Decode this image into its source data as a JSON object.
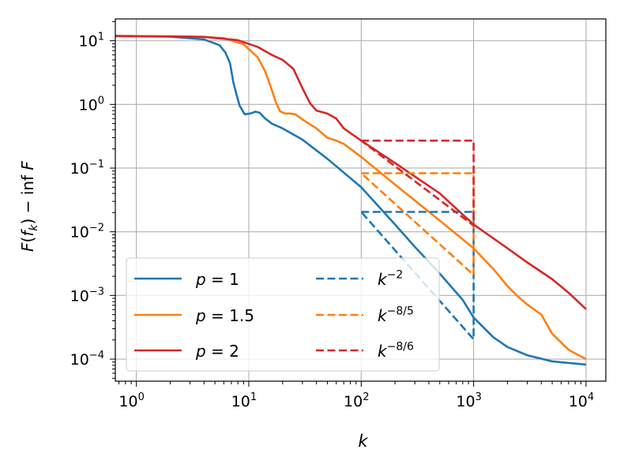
{
  "chart_data": {
    "type": "line",
    "xscale": "log",
    "yscale": "log",
    "xlim": [
      0.65,
      15000
    ],
    "ylim": [
      4.5e-05,
      22
    ],
    "grid": true,
    "xlabel": "k",
    "ylabel": "F(f_k) − inf F",
    "xticks": [
      {
        "base": "10",
        "exp": "0",
        "value": 1
      },
      {
        "base": "10",
        "exp": "1",
        "value": 10
      },
      {
        "base": "10",
        "exp": "2",
        "value": 100
      },
      {
        "base": "10",
        "exp": "3",
        "value": 1000
      },
      {
        "base": "10",
        "exp": "4",
        "value": 10000
      }
    ],
    "yticks": [
      {
        "base": "10",
        "exp": "1",
        "value": 10
      },
      {
        "base": "10",
        "exp": "0",
        "value": 1
      },
      {
        "base": "10",
        "exp": "−1",
        "value": 0.1
      },
      {
        "base": "10",
        "exp": "−2",
        "value": 0.01
      },
      {
        "base": "10",
        "exp": "−3",
        "value": 0.001
      },
      {
        "base": "10",
        "exp": "−4",
        "value": 0.0001
      }
    ],
    "series": [
      {
        "name": "p = 1",
        "style": "solid",
        "color": "#1f77b4",
        "points": [
          [
            0.65,
            11.8
          ],
          [
            2,
            11.6
          ],
          [
            4,
            10.5
          ],
          [
            5.5,
            8.5
          ],
          [
            6.2,
            6.5
          ],
          [
            6.8,
            4.5
          ],
          [
            7.3,
            2.2
          ],
          [
            7.8,
            1.4
          ],
          [
            8.3,
            0.95
          ],
          [
            9.2,
            0.7
          ],
          [
            10.3,
            0.72
          ],
          [
            11.5,
            0.77
          ],
          [
            12.5,
            0.74
          ],
          [
            14,
            0.6
          ],
          [
            16,
            0.5
          ],
          [
            20,
            0.42
          ],
          [
            30,
            0.28
          ],
          [
            50,
            0.14
          ],
          [
            100,
            0.05
          ],
          [
            200,
            0.013
          ],
          [
            300,
            0.0058
          ],
          [
            500,
            0.0022
          ],
          [
            800,
            0.00085
          ],
          [
            1000,
            0.00045
          ],
          [
            1500,
            0.00022
          ],
          [
            2000,
            0.000155
          ],
          [
            3000,
            0.000115
          ],
          [
            5000,
            9.2e-05
          ],
          [
            10000,
            8.2e-05
          ]
        ]
      },
      {
        "name": "p = 1.5",
        "style": "solid",
        "color": "#ff7f0e",
        "points": [
          [
            0.65,
            11.9
          ],
          [
            3,
            11.7
          ],
          [
            6,
            11
          ],
          [
            9,
            8.8
          ],
          [
            12,
            5.5
          ],
          [
            14,
            3.3
          ],
          [
            16,
            1.7
          ],
          [
            17.5,
            1.05
          ],
          [
            19,
            0.78
          ],
          [
            21,
            0.72
          ],
          [
            23,
            0.72
          ],
          [
            26,
            0.7
          ],
          [
            30,
            0.58
          ],
          [
            40,
            0.42
          ],
          [
            50,
            0.3
          ],
          [
            60,
            0.27
          ],
          [
            70,
            0.24
          ],
          [
            100,
            0.15
          ],
          [
            200,
            0.055
          ],
          [
            500,
            0.015
          ],
          [
            1000,
            0.0055
          ],
          [
            1500,
            0.0026
          ],
          [
            2000,
            0.0014
          ],
          [
            2500,
            0.00095
          ],
          [
            3000,
            0.00072
          ],
          [
            4000,
            0.0005
          ],
          [
            5000,
            0.00025
          ],
          [
            7000,
            0.00014
          ],
          [
            10000,
            0.0001
          ]
        ]
      },
      {
        "name": "p = 2",
        "style": "solid",
        "color": "#d62728",
        "points": [
          [
            0.65,
            11.9
          ],
          [
            4,
            11.5
          ],
          [
            8,
            10.2
          ],
          [
            12,
            8
          ],
          [
            16,
            6
          ],
          [
            20,
            5
          ],
          [
            25,
            3.6
          ],
          [
            30,
            1.8
          ],
          [
            35,
            1.05
          ],
          [
            40,
            0.8
          ],
          [
            50,
            0.72
          ],
          [
            60,
            0.6
          ],
          [
            70,
            0.42
          ],
          [
            100,
            0.27
          ],
          [
            200,
            0.12
          ],
          [
            500,
            0.04
          ],
          [
            1000,
            0.013
          ],
          [
            2000,
            0.0055
          ],
          [
            3000,
            0.0033
          ],
          [
            5000,
            0.0018
          ],
          [
            7000,
            0.0011
          ],
          [
            10000,
            0.00061
          ]
        ]
      },
      {
        "name": "k^-2",
        "style": "dashed",
        "color": "#1f77b4",
        "points": [
          [
            100,
            0.0205
          ],
          [
            1000,
            0.0205
          ],
          [
            1000,
            0.000205
          ],
          [
            100,
            0.0205
          ]
        ]
      },
      {
        "name": "k^-8/5",
        "style": "dashed",
        "color": "#ff7f0e",
        "points": [
          [
            100,
            0.083
          ],
          [
            1000,
            0.083
          ],
          [
            1000,
            0.0021
          ],
          [
            100,
            0.083
          ]
        ]
      },
      {
        "name": "k^-8/6",
        "style": "dashed",
        "color": "#d62728",
        "points": [
          [
            100,
            0.27
          ],
          [
            1000,
            0.27
          ],
          [
            1000,
            0.0125
          ],
          [
            100,
            0.27
          ]
        ]
      }
    ],
    "legend": {
      "position": "lower-left",
      "columns": 2,
      "entries": [
        {
          "label": "p = 1",
          "style": "solid",
          "color": "#1f77b4"
        },
        {
          "label": "p = 1.5",
          "style": "solid",
          "color": "#ff7f0e"
        },
        {
          "label": "p = 2",
          "style": "solid",
          "color": "#d62728"
        },
        {
          "label": "k^-2",
          "base": "k",
          "exp": "−2",
          "style": "dashed",
          "color": "#1f77b4"
        },
        {
          "label": "k^-8/5",
          "base": "k",
          "exp": "−8/5",
          "style": "dashed",
          "color": "#ff7f0e"
        },
        {
          "label": "k^-8/6",
          "base": "k",
          "exp": "−8/6",
          "style": "dashed",
          "color": "#d62728"
        }
      ]
    }
  }
}
